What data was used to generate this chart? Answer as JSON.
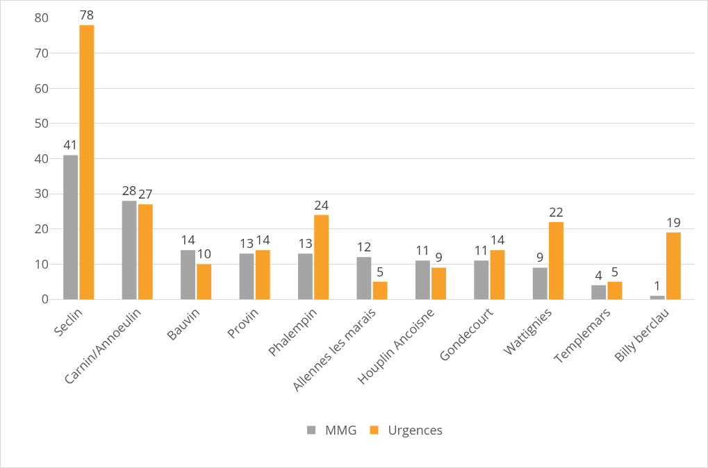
{
  "chart_data": {
    "type": "bar",
    "categories": [
      "Seclin",
      "Carnin/Annoeulin",
      "Bauvin",
      "Provin",
      "Phalempin",
      "Allennes les marais",
      "Houplin Ancoisne",
      "Gondecourt",
      "Wattignies",
      "Templemars",
      "Billy berclau"
    ],
    "series": [
      {
        "name": "MMG",
        "color": "#a5a5a5",
        "values": [
          41,
          28,
          14,
          13,
          13,
          12,
          11,
          11,
          9,
          4,
          1
        ]
      },
      {
        "name": "Urgences",
        "color": "#f7a12a",
        "values": [
          78,
          27,
          10,
          14,
          24,
          5,
          9,
          14,
          22,
          5,
          19
        ]
      }
    ],
    "ylim": [
      0,
      80
    ],
    "yticks": [
      0,
      10,
      20,
      30,
      40,
      50,
      60,
      70,
      80
    ],
    "grid": "y",
    "legend": "bottom",
    "data_labels": true
  }
}
